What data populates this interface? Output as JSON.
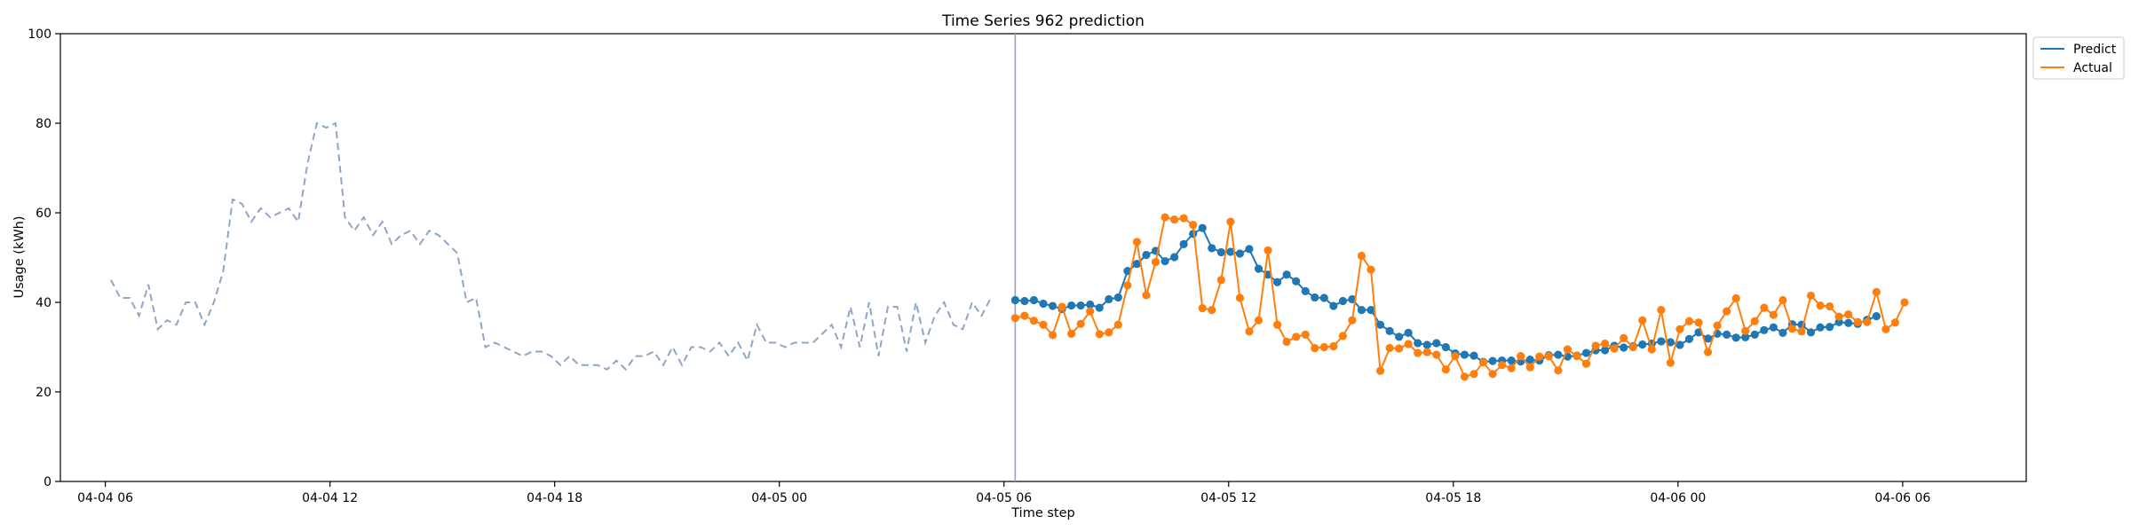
{
  "chart_data": {
    "type": "line",
    "title": "Time Series 962 prediction",
    "xlabel": "Time step",
    "ylabel": "Usage (kWh)",
    "ylim": [
      0,
      100
    ],
    "yticks": [
      0,
      20,
      40,
      60,
      80,
      100
    ],
    "xticks": [
      {
        "label": "04-04 06",
        "h": 0
      },
      {
        "label": "04-04 12",
        "h": 6
      },
      {
        "label": "04-04 18",
        "h": 12
      },
      {
        "label": "04-05 00",
        "h": 18
      },
      {
        "label": "04-05 06",
        "h": 24
      },
      {
        "label": "04-05 12",
        "h": 30
      },
      {
        "label": "04-05 18",
        "h": 36
      },
      {
        "label": "04-06 00",
        "h": 42
      },
      {
        "label": "04-06 06",
        "h": 48
      }
    ],
    "xlim_hours": [
      -1.2,
      51.3
    ],
    "forecast_start_hours": 24.3,
    "step_hours": 0.25,
    "history": {
      "start_hours": 0.15,
      "values": [
        45,
        41,
        41,
        37,
        44,
        34,
        36,
        35,
        40,
        40,
        35,
        40,
        47,
        63,
        62,
        58,
        61,
        59,
        60,
        61,
        58,
        71,
        80,
        79,
        80,
        59,
        56,
        59,
        55,
        58,
        53,
        55,
        56,
        53,
        56,
        55,
        53,
        51,
        40,
        41,
        30,
        31,
        30,
        29,
        28,
        29,
        29,
        28,
        26,
        28,
        26,
        26,
        26,
        25,
        27,
        25,
        28,
        28,
        29,
        26,
        30,
        26,
        30,
        30,
        29,
        31,
        28,
        31,
        27,
        35,
        31,
        31,
        30,
        31,
        31,
        31,
        33,
        35,
        30,
        39,
        30,
        40,
        28,
        39,
        39,
        29,
        40,
        31,
        37,
        40,
        35,
        34,
        40,
        37,
        41
      ]
    },
    "series": [
      {
        "name": "Predict",
        "color": "#1f77b4",
        "values": [
          40.5,
          40.3,
          40.5,
          39.7,
          39.2,
          38.5,
          39.3,
          39.3,
          39.5,
          38.8,
          40.7,
          41.1,
          47.0,
          48.6,
          50.6,
          51.5,
          49.2,
          50.1,
          53.0,
          55.3,
          56.6,
          52.1,
          51.2,
          51.3,
          50.9,
          51.9,
          47.5,
          46.2,
          44.5,
          46.2,
          44.7,
          42.5,
          41.1,
          41.0,
          39.2,
          40.3,
          40.7,
          38.3,
          38.3,
          35.0,
          33.6,
          32.3,
          33.2,
          30.9,
          30.5,
          30.9,
          30.0,
          28.6,
          28.3,
          28.1,
          26.7,
          26.9,
          27.0,
          27.0,
          26.8,
          27.2,
          27.0,
          28.2,
          28.3,
          27.9,
          28.1,
          28.7,
          29.3,
          29.3,
          30.3,
          29.9,
          30.2,
          30.6,
          30.8,
          31.3,
          31.1,
          30.5,
          31.8,
          33.3,
          31.9,
          33.0,
          32.8,
          32.1,
          32.2,
          32.8,
          33.8,
          34.4,
          33.2,
          35.1,
          35.0,
          33.3,
          34.4,
          34.5,
          35.6,
          35.4,
          35.2,
          36.1,
          36.9
        ]
      },
      {
        "name": "Actual",
        "color": "#ff7f0e",
        "values": [
          36.5,
          37.0,
          35.9,
          35.0,
          32.7,
          39.0,
          33.0,
          35.2,
          38.0,
          32.9,
          33.3,
          35.0,
          43.8,
          53.5,
          41.6,
          49.0,
          59.0,
          58.5,
          58.8,
          57.3,
          38.7,
          38.3,
          45.0,
          58.0,
          41.0,
          33.5,
          36.0,
          51.6,
          35.0,
          31.2,
          32.3,
          32.8,
          29.8,
          30.0,
          30.2,
          32.5,
          36.0,
          50.4,
          47.3,
          24.7,
          29.8,
          29.7,
          30.7,
          28.7,
          28.9,
          28.3,
          25.0,
          28.0,
          23.4,
          24.0,
          26.6,
          24.0,
          26.0,
          25.3,
          28.0,
          25.5,
          27.9,
          28.0,
          24.8,
          29.5,
          28.0,
          26.3,
          30.3,
          30.8,
          29.7,
          32.0,
          30.0,
          36.0,
          29.5,
          38.3,
          26.5,
          34.0,
          35.8,
          35.5,
          28.9,
          34.8,
          38.0,
          40.9,
          33.6,
          35.8,
          38.8,
          37.2,
          40.5,
          34.1,
          33.5,
          41.5,
          39.3,
          39.1,
          36.8,
          37.3,
          35.6,
          35.6,
          42.3,
          34.0,
          35.5,
          40.0
        ]
      }
    ],
    "legend": {
      "placement": "top-right outside"
    },
    "colors": {
      "history": "#8fa6c4",
      "forecast_line": "#8fa6c4"
    }
  }
}
